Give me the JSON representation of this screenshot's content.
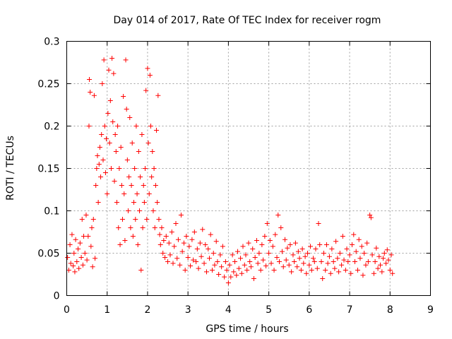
{
  "chart_data": {
    "type": "scatter",
    "title": "Day 014 of 2017, Rate Of TEC Index for receiver rogm",
    "xlabel": "GPS time / hours",
    "ylabel": "ROTI / TECUs",
    "xlim": [
      0,
      9
    ],
    "ylim": [
      0,
      0.3
    ],
    "x_ticks": [
      "0",
      "1",
      "2",
      "3",
      "4",
      "5",
      "6",
      "7",
      "8",
      "9"
    ],
    "y_ticks": [
      "0",
      "0.05",
      "0.1",
      "0.15",
      "0.2",
      "0.25",
      "0.3"
    ],
    "grid": true,
    "marker": "+",
    "series_color": "#ff0000",
    "series": [
      {
        "name": "ROTI",
        "points": [
          [
            0.02,
            0.045
          ],
          [
            0.05,
            0.03
          ],
          [
            0.08,
            0.06
          ],
          [
            0.1,
            0.038
          ],
          [
            0.13,
            0.072
          ],
          [
            0.16,
            0.035
          ],
          [
            0.18,
            0.05
          ],
          [
            0.2,
            0.028
          ],
          [
            0.22,
            0.066
          ],
          [
            0.25,
            0.04
          ],
          [
            0.28,
            0.055
          ],
          [
            0.3,
            0.032
          ],
          [
            0.33,
            0.062
          ],
          [
            0.36,
            0.045
          ],
          [
            0.38,
            0.09
          ],
          [
            0.4,
            0.036
          ],
          [
            0.42,
            0.07
          ],
          [
            0.45,
            0.05
          ],
          [
            0.48,
            0.095
          ],
          [
            0.5,
            0.042
          ],
          [
            0.53,
            0.07
          ],
          [
            0.55,
            0.2
          ],
          [
            0.56,
            0.255
          ],
          [
            0.58,
            0.24
          ],
          [
            0.6,
            0.058
          ],
          [
            0.62,
            0.08
          ],
          [
            0.64,
            0.034
          ],
          [
            0.66,
            0.09
          ],
          [
            0.68,
            0.236
          ],
          [
            0.7,
            0.044
          ],
          [
            0.72,
            0.13
          ],
          [
            0.74,
            0.15
          ],
          [
            0.76,
            0.165
          ],
          [
            0.78,
            0.11
          ],
          [
            0.8,
            0.155
          ],
          [
            0.82,
            0.175
          ],
          [
            0.84,
            0.14
          ],
          [
            0.86,
            0.19
          ],
          [
            0.88,
            0.25
          ],
          [
            0.9,
            0.16
          ],
          [
            0.92,
            0.278
          ],
          [
            0.94,
            0.2
          ],
          [
            0.96,
            0.145
          ],
          [
            0.98,
            0.185
          ],
          [
            1.0,
            0.12
          ],
          [
            1.02,
            0.215
          ],
          [
            1.04,
            0.266
          ],
          [
            1.06,
            0.18
          ],
          [
            1.08,
            0.23
          ],
          [
            1.1,
            0.15
          ],
          [
            1.12,
            0.28
          ],
          [
            1.14,
            0.205
          ],
          [
            1.16,
            0.262
          ],
          [
            1.18,
            0.135
          ],
          [
            1.2,
            0.19
          ],
          [
            1.22,
            0.17
          ],
          [
            1.24,
            0.11
          ],
          [
            1.26,
            0.2
          ],
          [
            1.28,
            0.08
          ],
          [
            1.3,
            0.15
          ],
          [
            1.32,
            0.06
          ],
          [
            1.34,
            0.175
          ],
          [
            1.36,
            0.13
          ],
          [
            1.38,
            0.09
          ],
          [
            1.4,
            0.235
          ],
          [
            1.42,
            0.12
          ],
          [
            1.44,
            0.065
          ],
          [
            1.46,
            0.278
          ],
          [
            1.48,
            0.22
          ],
          [
            1.5,
            0.16
          ],
          [
            1.52,
            0.1
          ],
          [
            1.54,
            0.14
          ],
          [
            1.56,
            0.21
          ],
          [
            1.58,
            0.08
          ],
          [
            1.6,
            0.13
          ],
          [
            1.62,
            0.18
          ],
          [
            1.64,
            0.07
          ],
          [
            1.66,
            0.11
          ],
          [
            1.68,
            0.15
          ],
          [
            1.7,
            0.09
          ],
          [
            1.72,
            0.2
          ],
          [
            1.74,
            0.12
          ],
          [
            1.76,
            0.06
          ],
          [
            1.78,
            0.17
          ],
          [
            1.8,
            0.1
          ],
          [
            1.82,
            0.14
          ],
          [
            1.84,
            0.03
          ],
          [
            1.86,
            0.19
          ],
          [
            1.88,
            0.08
          ],
          [
            1.9,
            0.13
          ],
          [
            1.92,
            0.11
          ],
          [
            1.94,
            0.15
          ],
          [
            1.96,
            0.242
          ],
          [
            1.98,
            0.09
          ],
          [
            2.0,
            0.268
          ],
          [
            2.02,
            0.18
          ],
          [
            2.04,
            0.12
          ],
          [
            2.06,
            0.26
          ],
          [
            2.08,
            0.2
          ],
          [
            2.1,
            0.14
          ],
          [
            2.12,
            0.17
          ],
          [
            2.14,
            0.1
          ],
          [
            2.16,
            0.15
          ],
          [
            2.18,
            0.08
          ],
          [
            2.2,
            0.13
          ],
          [
            2.22,
            0.195
          ],
          [
            2.24,
            0.11
          ],
          [
            2.26,
            0.236
          ],
          [
            2.28,
            0.09
          ],
          [
            2.3,
            0.072
          ],
          [
            2.32,
            0.06
          ],
          [
            2.35,
            0.08
          ],
          [
            2.38,
            0.05
          ],
          [
            2.4,
            0.065
          ],
          [
            2.43,
            0.045
          ],
          [
            2.46,
            0.07
          ],
          [
            2.5,
            0.04
          ],
          [
            2.53,
            0.062
          ],
          [
            2.56,
            0.048
          ],
          [
            2.6,
            0.075
          ],
          [
            2.63,
            0.038
          ],
          [
            2.66,
            0.058
          ],
          [
            2.7,
            0.085
          ],
          [
            2.73,
            0.044
          ],
          [
            2.76,
            0.066
          ],
          [
            2.8,
            0.036
          ],
          [
            2.83,
            0.095
          ],
          [
            2.86,
            0.052
          ],
          [
            2.9,
            0.062
          ],
          [
            2.93,
            0.03
          ],
          [
            2.96,
            0.07
          ],
          [
            3.0,
            0.045
          ],
          [
            3.03,
            0.058
          ],
          [
            3.06,
            0.035
          ],
          [
            3.1,
            0.066
          ],
          [
            3.13,
            0.042
          ],
          [
            3.16,
            0.075
          ],
          [
            3.2,
            0.04
          ],
          [
            3.23,
            0.055
          ],
          [
            3.26,
            0.032
          ],
          [
            3.3,
            0.062
          ],
          [
            3.33,
            0.046
          ],
          [
            3.36,
            0.078
          ],
          [
            3.4,
            0.038
          ],
          [
            3.43,
            0.06
          ],
          [
            3.46,
            0.028
          ],
          [
            3.5,
            0.055
          ],
          [
            3.53,
            0.044
          ],
          [
            3.56,
            0.072
          ],
          [
            3.6,
            0.03
          ],
          [
            3.63,
            0.05
          ],
          [
            3.66,
            0.036
          ],
          [
            3.7,
            0.064
          ],
          [
            3.73,
            0.04
          ],
          [
            3.76,
            0.025
          ],
          [
            3.8,
            0.048
          ],
          [
            3.83,
            0.034
          ],
          [
            3.86,
            0.058
          ],
          [
            3.9,
            0.022
          ],
          [
            3.93,
            0.04
          ],
          [
            3.96,
            0.03
          ],
          [
            4.0,
            0.015
          ],
          [
            4.03,
            0.036
          ],
          [
            4.06,
            0.022
          ],
          [
            4.1,
            0.048
          ],
          [
            4.13,
            0.028
          ],
          [
            4.16,
            0.04
          ],
          [
            4.2,
            0.024
          ],
          [
            4.23,
            0.052
          ],
          [
            4.26,
            0.032
          ],
          [
            4.3,
            0.044
          ],
          [
            4.33,
            0.026
          ],
          [
            4.36,
            0.058
          ],
          [
            4.4,
            0.036
          ],
          [
            4.43,
            0.048
          ],
          [
            4.46,
            0.03
          ],
          [
            4.5,
            0.062
          ],
          [
            4.53,
            0.04
          ],
          [
            4.56,
            0.034
          ],
          [
            4.6,
            0.055
          ],
          [
            4.63,
            0.02
          ],
          [
            4.66,
            0.045
          ],
          [
            4.7,
            0.065
          ],
          [
            4.73,
            0.038
          ],
          [
            4.76,
            0.05
          ],
          [
            4.8,
            0.03
          ],
          [
            4.83,
            0.06
          ],
          [
            4.86,
            0.042
          ],
          [
            4.9,
            0.07
          ],
          [
            4.93,
            0.035
          ],
          [
            4.96,
            0.085
          ],
          [
            5.0,
            0.05
          ],
          [
            5.03,
            0.065
          ],
          [
            5.06,
            0.038
          ],
          [
            5.1,
            0.058
          ],
          [
            5.13,
            0.03
          ],
          [
            5.16,
            0.072
          ],
          [
            5.2,
            0.045
          ],
          [
            5.23,
            0.095
          ],
          [
            5.26,
            0.04
          ],
          [
            5.3,
            0.08
          ],
          [
            5.33,
            0.052
          ],
          [
            5.36,
            0.034
          ],
          [
            5.4,
            0.066
          ],
          [
            5.43,
            0.042
          ],
          [
            5.46,
            0.056
          ],
          [
            5.5,
            0.036
          ],
          [
            5.53,
            0.06
          ],
          [
            5.56,
            0.028
          ],
          [
            5.6,
            0.048
          ],
          [
            5.63,
            0.04
          ],
          [
            5.66,
            0.062
          ],
          [
            5.7,
            0.034
          ],
          [
            5.73,
            0.052
          ],
          [
            5.76,
            0.044
          ],
          [
            5.8,
            0.03
          ],
          [
            5.83,
            0.055
          ],
          [
            5.86,
            0.038
          ],
          [
            5.9,
            0.046
          ],
          [
            5.93,
            0.026
          ],
          [
            5.96,
            0.05
          ],
          [
            6.0,
            0.036
          ],
          [
            6.03,
            0.058
          ],
          [
            6.06,
            0.03
          ],
          [
            6.1,
            0.044
          ],
          [
            6.13,
            0.04
          ],
          [
            6.16,
            0.055
          ],
          [
            6.2,
            0.032
          ],
          [
            6.23,
            0.085
          ],
          [
            6.26,
            0.06
          ],
          [
            6.3,
            0.04
          ],
          [
            6.33,
            0.02
          ],
          [
            6.36,
            0.05
          ],
          [
            6.4,
            0.03
          ],
          [
            6.43,
            0.06
          ],
          [
            6.46,
            0.038
          ],
          [
            6.5,
            0.046
          ],
          [
            6.53,
            0.026
          ],
          [
            6.56,
            0.055
          ],
          [
            6.6,
            0.04
          ],
          [
            6.63,
            0.032
          ],
          [
            6.66,
            0.064
          ],
          [
            6.7,
            0.044
          ],
          [
            6.73,
            0.028
          ],
          [
            6.76,
            0.05
          ],
          [
            6.8,
            0.036
          ],
          [
            6.83,
            0.07
          ],
          [
            6.86,
            0.042
          ],
          [
            6.9,
            0.03
          ],
          [
            6.93,
            0.055
          ],
          [
            6.96,
            0.04
          ],
          [
            7.0,
            0.048
          ],
          [
            7.03,
            0.026
          ],
          [
            7.06,
            0.06
          ],
          [
            7.1,
            0.072
          ],
          [
            7.13,
            0.04
          ],
          [
            7.16,
            0.052
          ],
          [
            7.2,
            0.03
          ],
          [
            7.23,
            0.066
          ],
          [
            7.26,
            0.044
          ],
          [
            7.3,
            0.058
          ],
          [
            7.33,
            0.024
          ],
          [
            7.36,
            0.05
          ],
          [
            7.4,
            0.036
          ],
          [
            7.43,
            0.062
          ],
          [
            7.46,
            0.04
          ],
          [
            7.5,
            0.095
          ],
          [
            7.53,
            0.092
          ],
          [
            7.56,
            0.048
          ],
          [
            7.6,
            0.026
          ],
          [
            7.63,
            0.04
          ],
          [
            7.66,
            0.056
          ],
          [
            7.7,
            0.032
          ],
          [
            7.73,
            0.046
          ],
          [
            7.76,
            0.036
          ],
          [
            7.8,
            0.028
          ],
          [
            7.83,
            0.044
          ],
          [
            7.86,
            0.05
          ],
          [
            7.9,
            0.038
          ],
          [
            7.93,
            0.054
          ],
          [
            7.96,
            0.042
          ],
          [
            8.0,
            0.03
          ],
          [
            8.03,
            0.048
          ],
          [
            8.06,
            0.026
          ]
        ]
      }
    ]
  }
}
